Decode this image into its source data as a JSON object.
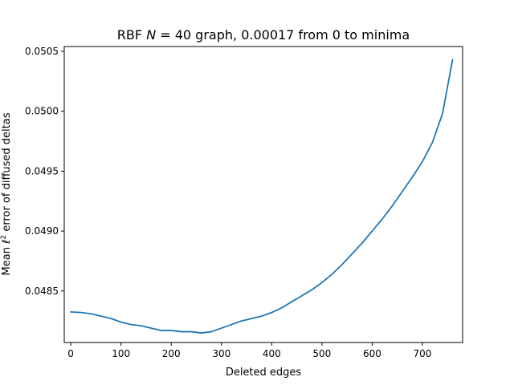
{
  "chart_data": {
    "type": "line",
    "title": "RBF N = 40 graph, 0.00017 from 0 to minima",
    "title_parts": {
      "prefix": "RBF ",
      "variable": "N",
      "suffix": " = 40 graph, 0.00017 from 0 to minima"
    },
    "xlabel": "Deleted edges",
    "ylabel": "Mean ℓ² error of diffused deltas",
    "ylabel_parts": {
      "prefix": "Mean ",
      "variable": "ℓ",
      "superscript": "2",
      "suffix": " error of diffused deltas"
    },
    "xlim": [
      -13,
      780
    ],
    "ylim": [
      0.04807,
      0.05054
    ],
    "x_ticks": [
      0,
      100,
      200,
      300,
      400,
      500,
      600,
      700
    ],
    "y_ticks": [
      0.0485,
      0.049,
      0.0495,
      0.05,
      0.0505
    ],
    "y_tick_labels": [
      "0.0485",
      "0.0490",
      "0.0495",
      "0.0500",
      "0.0505"
    ],
    "grid": false,
    "legend": "none",
    "colors": {
      "line": "#1f77b4",
      "axes": "#000000",
      "background": "#ffffff"
    },
    "series": [
      {
        "x": [
          0,
          20,
          40,
          60,
          80,
          100,
          120,
          140,
          160,
          180,
          200,
          220,
          240,
          260,
          280,
          300,
          320,
          340,
          360,
          380,
          400,
          420,
          440,
          460,
          480,
          500,
          520,
          540,
          560,
          580,
          600,
          620,
          640,
          660,
          680,
          700,
          720,
          740,
          760
        ],
        "y": [
          0.048325,
          0.04832,
          0.04831,
          0.04829,
          0.04827,
          0.04824,
          0.04822,
          0.04821,
          0.04819,
          0.04817,
          0.04817,
          0.04816,
          0.04816,
          0.04815,
          0.04816,
          0.04819,
          0.04822,
          0.04825,
          0.04827,
          0.04829,
          0.04832,
          0.04836,
          0.04841,
          0.04846,
          0.04851,
          0.04857,
          0.04864,
          0.04872,
          0.04881,
          0.0489,
          0.049,
          0.0491,
          0.04921,
          0.04933,
          0.04945,
          0.04958,
          0.04974,
          0.04998,
          0.05043
        ]
      }
    ]
  }
}
